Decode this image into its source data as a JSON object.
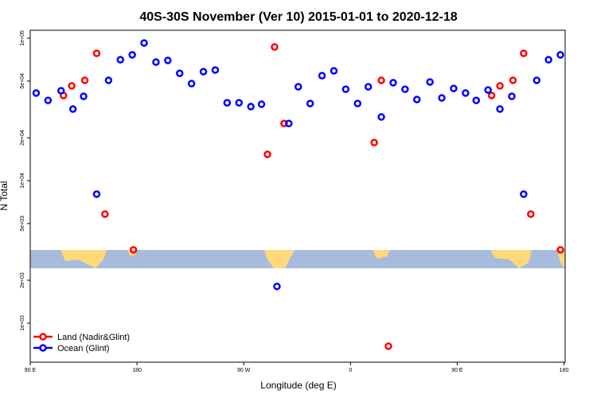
{
  "chart_data": {
    "type": "scatter",
    "title": "40S-30S November (Ver 10)   2015-01-01 to 2020-12-18",
    "x_label": "Longitude (deg E)",
    "y_label": "N Total",
    "xlim": [
      90,
      541
    ],
    "ylim": [
      532,
      113700
    ],
    "log_y": true,
    "legend": "bottom-left",
    "xticks": [
      {
        "value": 90,
        "label": "90 E"
      },
      180,
      {
        "value": 270,
        "label": "90 W"
      },
      {
        "value": 360,
        "label": "0"
      },
      {
        "value": 450,
        "label": "90 E"
      },
      {
        "value": 540,
        "label": "180"
      }
    ],
    "yticks": [
      {
        "value": 1000,
        "label": "1e+03"
      },
      {
        "value": 2000,
        "label": "2e+03"
      },
      {
        "value": 5000,
        "label": "5e+03"
      },
      {
        "value": 10000,
        "label": "1e+04"
      },
      {
        "value": 20000,
        "label": "2e+04"
      },
      {
        "value": 50000,
        "label": "5e+04"
      },
      {
        "value": 100000,
        "label": "1e+05"
      }
    ],
    "series": [
      {
        "name": "Land (Nadir&Glint)",
        "color": "#ff0000",
        "x": [
          118,
          125,
          136,
          146,
          153,
          177,
          290,
          296,
          304,
          380,
          386,
          392,
          479,
          486,
          497,
          506,
          512,
          537
        ],
        "values": [
          39600,
          46300,
          50600,
          78300,
          5820,
          3270,
          15300,
          86800,
          25200,
          18500,
          50600,
          689,
          39600,
          46300,
          50600,
          78300,
          5820,
          3270
        ]
      },
      {
        "name": "Ocean (Glint)",
        "color": "#0000ff",
        "x": [
          95,
          105,
          116,
          126,
          135,
          146,
          156,
          166,
          176,
          186,
          196,
          206,
          216,
          226,
          236,
          246,
          256,
          266,
          276,
          285,
          298,
          308,
          316,
          326,
          336,
          346,
          356,
          366,
          375,
          386,
          396,
          406,
          416,
          427,
          437,
          447,
          457,
          466,
          476,
          486,
          496,
          506,
          517,
          527,
          537
        ],
        "values": [
          41200,
          36600,
          42800,
          31800,
          39100,
          8040,
          50600,
          70600,
          76400,
          92600,
          68000,
          69800,
          56700,
          48000,
          58200,
          59800,
          35200,
          35200,
          33100,
          34400,
          1810,
          25200,
          45600,
          34800,
          54600,
          59000,
          43800,
          34800,
          45600,
          28000,
          48700,
          43800,
          37100,
          49300,
          38100,
          44400,
          41200,
          36600,
          43300,
          31800,
          39100,
          8040,
          50600,
          70600,
          76400
        ]
      }
    ]
  }
}
